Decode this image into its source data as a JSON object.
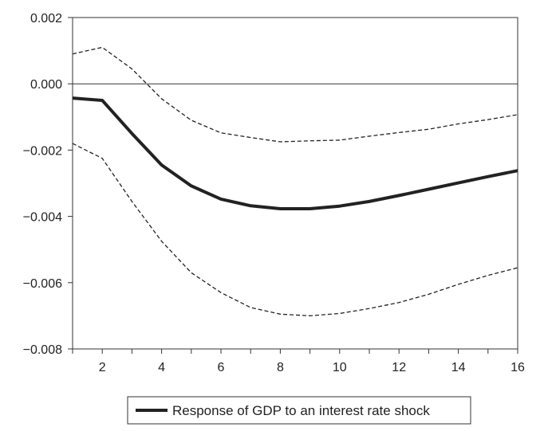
{
  "chart_data": {
    "type": "line",
    "x": [
      1,
      2,
      3,
      4,
      5,
      6,
      7,
      8,
      9,
      10,
      11,
      12,
      13,
      14,
      15,
      16
    ],
    "series": [
      {
        "name": "Response of GDP to an interest rate shock",
        "style": "solid-thick",
        "values": [
          -0.00043,
          -0.0005,
          -0.0015,
          -0.00245,
          -0.00308,
          -0.00348,
          -0.00368,
          -0.00377,
          -0.00377,
          -0.00369,
          -0.00355,
          -0.00337,
          -0.00318,
          -0.00299,
          -0.0028,
          -0.00262
        ]
      },
      {
        "style": "dashed-upper",
        "values": [
          0.0009,
          0.0011,
          0.00045,
          -0.00045,
          -0.0011,
          -0.00148,
          -0.00162,
          -0.00175,
          -0.00172,
          -0.0017,
          -0.00158,
          -0.00147,
          -0.00137,
          -0.00121,
          -0.00108,
          -0.00093
        ]
      },
      {
        "style": "dashed-lower",
        "values": [
          -0.0018,
          -0.00225,
          -0.00355,
          -0.00475,
          -0.0057,
          -0.0063,
          -0.00675,
          -0.00695,
          -0.007,
          -0.00693,
          -0.00678,
          -0.0066,
          -0.00635,
          -0.00605,
          -0.00578,
          -0.00555
        ]
      }
    ],
    "xlim": [
      1,
      16
    ],
    "ylim": [
      -0.008,
      0.002
    ],
    "x_ticks": [
      2,
      4,
      6,
      8,
      10,
      12,
      14,
      16
    ],
    "x_tick_labels": [
      "2",
      "4",
      "6",
      "8",
      "10",
      "12",
      "14",
      "16"
    ],
    "y_ticks": [
      0.002,
      0.0,
      -0.002,
      -0.004,
      -0.006,
      -0.008
    ],
    "y_tick_labels": [
      "0.002",
      "0.000",
      "−0.002",
      "−0.004",
      "−0.006",
      "−0.008"
    ],
    "zero_line": true,
    "grid": false,
    "legend_position": "bottom-center",
    "legend_label": "Response of GDP to an interest rate shock",
    "line_color": "#222222"
  }
}
